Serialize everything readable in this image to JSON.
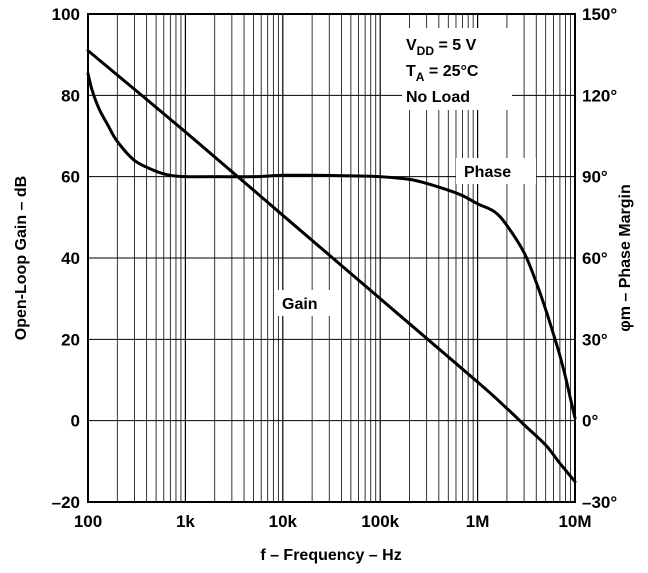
{
  "chart_data": {
    "type": "line",
    "xlabel": "f – Frequency – Hz",
    "ylabel": "Open-Loop Gain – dB",
    "y2label": "φm – Phase Margin",
    "x_scale": "log",
    "xlim": [
      100,
      10000000
    ],
    "ylim": [
      -20,
      100
    ],
    "y2lim": [
      -30,
      150
    ],
    "grid": true,
    "x_ticks": [
      {
        "value": 100,
        "label": "100"
      },
      {
        "value": 1000,
        "label": "1k"
      },
      {
        "value": 10000,
        "label": "10k"
      },
      {
        "value": 100000,
        "label": "100k"
      },
      {
        "value": 1000000,
        "label": "1M"
      },
      {
        "value": 10000000,
        "label": "10M"
      }
    ],
    "y_ticks": [
      {
        "value": 100,
        "label": "100"
      },
      {
        "value": 80,
        "label": "80"
      },
      {
        "value": 60,
        "label": "60"
      },
      {
        "value": 40,
        "label": "40"
      },
      {
        "value": 20,
        "label": "20"
      },
      {
        "value": 0,
        "label": "0"
      },
      {
        "value": -20,
        "label": "–20"
      }
    ],
    "y2_ticks": [
      {
        "value": 150,
        "label": "150°"
      },
      {
        "value": 120,
        "label": "120°"
      },
      {
        "value": 90,
        "label": "90°"
      },
      {
        "value": 60,
        "label": "60°"
      },
      {
        "value": 30,
        "label": "30°"
      },
      {
        "value": 0,
        "label": "0°"
      },
      {
        "value": -30,
        "label": "–30°"
      }
    ],
    "annotation": {
      "vdd_main": "V",
      "vdd_sub": "DD",
      "vdd_rest": " = 5 V",
      "ta_main": "T",
      "ta_sub": "A",
      "ta_rest": " = 25°C",
      "load": "No Load"
    },
    "series": [
      {
        "name": "Gain",
        "axis": "left",
        "x": [
          100,
          1000,
          10000,
          100000,
          1000000,
          2000000,
          3000000,
          5000000,
          7000000,
          10000000
        ],
        "y": [
          91,
          71,
          50.5,
          30,
          9.5,
          3,
          -1,
          -6,
          -10.5,
          -15
        ]
      },
      {
        "name": "Phase",
        "axis": "right",
        "x": [
          100,
          110,
          130,
          160,
          200,
          300,
          500,
          700,
          1000,
          2000,
          5000,
          10000,
          20000,
          50000,
          100000,
          200000,
          300000,
          500000,
          700000,
          1000000,
          1500000,
          2000000,
          3000000,
          4000000,
          5000000,
          6000000,
          7000000,
          8000000,
          9000000,
          10000000
        ],
        "y": [
          128,
          122,
          115,
          109,
          103,
          96,
          92,
          90.5,
          90,
          90,
          90,
          90.5,
          90.5,
          90.3,
          90,
          89,
          87.5,
          85,
          83,
          80,
          77,
          72,
          62,
          51,
          41,
          32,
          24,
          16,
          8,
          1
        ]
      }
    ]
  }
}
